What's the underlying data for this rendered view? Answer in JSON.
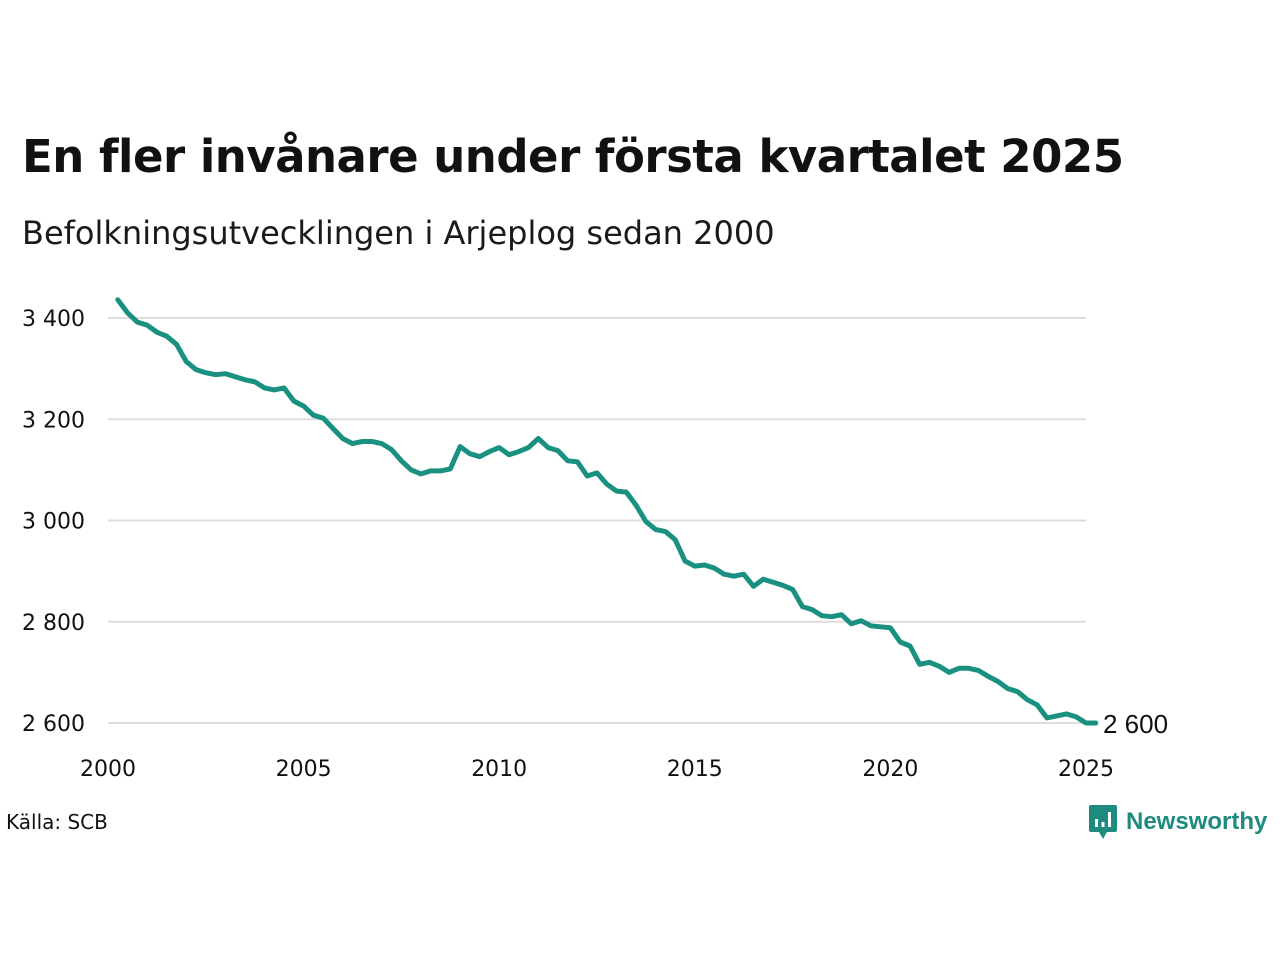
{
  "title": "En fler invånare under första kvartalet 2025",
  "subtitle": "Befolkningsutvecklingen i Arjeplog sedan 2000",
  "source": "Källa: SCB",
  "logo": {
    "text": "Newsworthy",
    "icon": "newsworthy-logo-icon"
  },
  "colors": {
    "line": "#1a9080",
    "grid": "#dddddd",
    "logo": "#1f8a7e"
  },
  "chart_data": {
    "type": "line",
    "title": "En fler invånare under första kvartalet 2025",
    "subtitle": "Befolkningsutvecklingen i Arjeplog sedan 2000",
    "xlabel": "",
    "ylabel": "",
    "xlim": [
      2000,
      2025
    ],
    "ylim": [
      2560,
      3450
    ],
    "grid": true,
    "legend": "none",
    "x_ticks": [
      2000,
      2005,
      2010,
      2015,
      2020,
      2025
    ],
    "x_tick_labels": [
      "2000",
      "2005",
      "2010",
      "2015",
      "2020",
      "2025"
    ],
    "y_ticks": [
      2600,
      2800,
      3000,
      3200,
      3400
    ],
    "y_tick_labels": [
      "2 600",
      "2 800",
      "3 000",
      "3 200",
      "3 400"
    ],
    "end_label": "2 600",
    "series": [
      {
        "x": [
          2000.25,
          2000.5,
          2000.75,
          2001.0,
          2001.25,
          2001.5,
          2001.75,
          2002.0,
          2002.25,
          2002.5,
          2002.75,
          2003.0,
          2003.25,
          2003.5,
          2003.75,
          2004.0,
          2004.25,
          2004.5,
          2004.75,
          2005.0,
          2005.25,
          2005.5,
          2005.75,
          2006.0,
          2006.25,
          2006.5,
          2006.75,
          2007.0,
          2007.25,
          2007.5,
          2007.75,
          2008.0,
          2008.25,
          2008.5,
          2008.75,
          2009.0,
          2009.25,
          2009.5,
          2009.75,
          2010.0,
          2010.25,
          2010.5,
          2010.75,
          2011.0,
          2011.25,
          2011.5,
          2011.75,
          2012.0,
          2012.25,
          2012.5,
          2012.75,
          2013.0,
          2013.25,
          2013.5,
          2013.75,
          2014.0,
          2014.25,
          2014.5,
          2014.75,
          2015.0,
          2015.25,
          2015.5,
          2015.75,
          2016.0,
          2016.25,
          2016.5,
          2016.75,
          2017.0,
          2017.25,
          2017.5,
          2017.75,
          2018.0,
          2018.25,
          2018.5,
          2018.75,
          2019.0,
          2019.25,
          2019.5,
          2019.75,
          2020.0,
          2020.25,
          2020.5,
          2020.75,
          2021.0,
          2021.25,
          2021.5,
          2021.75,
          2022.0,
          2022.25,
          2022.5,
          2022.75,
          2023.0,
          2023.25,
          2023.5,
          2023.75,
          2024.0,
          2024.25,
          2024.5,
          2024.75,
          2025.0,
          2025.25
        ],
        "values": [
          3436,
          3410,
          3392,
          3386,
          3372,
          3364,
          3348,
          3314,
          3298,
          3292,
          3288,
          3290,
          3284,
          3278,
          3274,
          3262,
          3258,
          3262,
          3236,
          3226,
          3208,
          3202,
          3182,
          3162,
          3152,
          3156,
          3156,
          3152,
          3140,
          3118,
          3100,
          3092,
          3098,
          3098,
          3102,
          3146,
          3132,
          3126,
          3136,
          3144,
          3130,
          3136,
          3144,
          3162,
          3144,
          3138,
          3118,
          3116,
          3088,
          3094,
          3072,
          3058,
          3056,
          3030,
          2998,
          2982,
          2978,
          2962,
          2920,
          2910,
          2912,
          2906,
          2894,
          2890,
          2894,
          2870,
          2884,
          2878,
          2872,
          2864,
          2830,
          2824,
          2812,
          2810,
          2814,
          2796,
          2802,
          2792,
          2790,
          2788,
          2760,
          2752,
          2716,
          2720,
          2712,
          2700,
          2708,
          2708,
          2704,
          2692,
          2682,
          2668,
          2662,
          2646,
          2636,
          2610,
          2614,
          2618,
          2612,
          2600,
          2600
        ]
      }
    ]
  }
}
